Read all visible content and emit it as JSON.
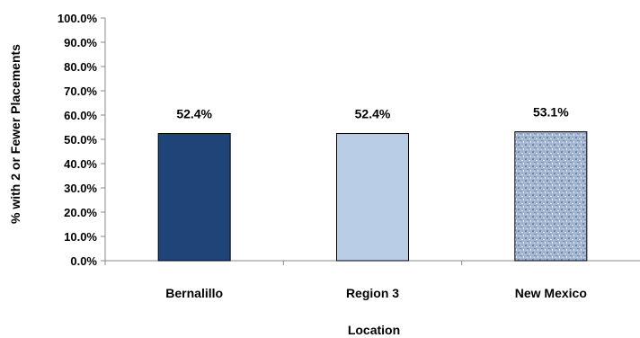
{
  "chart_data": {
    "type": "bar",
    "categories": [
      "Bernalillo",
      "Region 3",
      "New Mexico"
    ],
    "values": [
      52.4,
      52.4,
      53.1
    ],
    "data_labels": [
      "52.4%",
      "52.4%",
      "53.1%"
    ],
    "title": "",
    "xlabel": "Location",
    "ylabel": "% with 2 or Fewer Placements",
    "ylim": [
      0,
      100
    ],
    "y_ticks": [
      0,
      10,
      20,
      30,
      40,
      50,
      60,
      70,
      80,
      90,
      100
    ],
    "y_tick_labels": [
      "0.0%",
      "10.0%",
      "20.0%",
      "30.0%",
      "40.0%",
      "50.0%",
      "60.0%",
      "70.0%",
      "80.0%",
      "90.0%",
      "100.0%"
    ],
    "grid": false,
    "legend": "none",
    "bar_colors": [
      "#1f4578",
      "#b9cde6",
      "#a4b6d1"
    ],
    "bar_patterns": [
      "solid",
      "solid",
      "textured"
    ]
  }
}
